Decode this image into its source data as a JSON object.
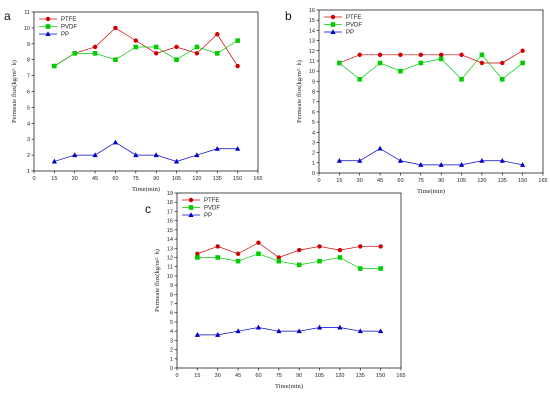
{
  "chart_data": [
    {
      "panel_label": "a",
      "type": "line",
      "xlabel": "Time(min)",
      "ylabel": "Permeate flux(kg/m²· h)",
      "x_ticks": [
        0,
        15,
        30,
        45,
        60,
        75,
        90,
        105,
        120,
        135,
        150,
        165
      ],
      "y_ticks": [
        1,
        2,
        3,
        4,
        5,
        6,
        7,
        8,
        9,
        10,
        11
      ],
      "xlim": [
        0,
        165
      ],
      "ylim": [
        1,
        11
      ],
      "legend_position": "top-left",
      "x": [
        15,
        30,
        45,
        60,
        75,
        90,
        105,
        120,
        135,
        150
      ],
      "series": [
        {
          "name": "PTFE",
          "color": "#cc0000",
          "marker": "circle",
          "values": [
            7.6,
            8.4,
            8.8,
            10.0,
            9.2,
            8.4,
            8.8,
            8.4,
            9.6,
            7.6
          ]
        },
        {
          "name": "PVDF",
          "color": "#00cc00",
          "marker": "square",
          "values": [
            7.6,
            8.4,
            8.4,
            8.0,
            8.8,
            8.8,
            8.0,
            8.8,
            8.4,
            9.2
          ]
        },
        {
          "name": "PP",
          "color": "#0000cc",
          "marker": "triangle",
          "values": [
            1.6,
            2.0,
            2.0,
            2.8,
            2.0,
            2.0,
            1.6,
            2.0,
            2.4,
            2.4
          ]
        }
      ]
    },
    {
      "panel_label": "b",
      "type": "line",
      "xlabel": "Time(min)",
      "ylabel": "Permeate flux(kg/m²· h)",
      "x_ticks": [
        0,
        15,
        30,
        45,
        60,
        75,
        90,
        105,
        120,
        135,
        150,
        165
      ],
      "y_ticks": [
        0,
        1,
        2,
        3,
        4,
        5,
        6,
        7,
        8,
        9,
        10,
        11,
        12,
        13,
        14,
        15,
        16
      ],
      "xlim": [
        0,
        165
      ],
      "ylim": [
        0,
        16
      ],
      "legend_position": "top-left",
      "x": [
        15,
        30,
        45,
        60,
        75,
        90,
        105,
        120,
        135,
        150
      ],
      "series": [
        {
          "name": "PTFE",
          "color": "#cc0000",
          "marker": "circle",
          "values": [
            10.8,
            11.6,
            11.6,
            11.6,
            11.6,
            11.6,
            11.6,
            10.8,
            10.8,
            12.0
          ]
        },
        {
          "name": "PVDF",
          "color": "#00cc00",
          "marker": "square",
          "values": [
            10.8,
            9.2,
            10.8,
            10.0,
            10.8,
            11.2,
            9.2,
            11.6,
            9.2,
            10.8
          ]
        },
        {
          "name": "PP",
          "color": "#0000cc",
          "marker": "triangle",
          "values": [
            1.2,
            1.2,
            2.4,
            1.2,
            0.8,
            0.8,
            0.8,
            1.2,
            1.2,
            0.8
          ]
        }
      ]
    },
    {
      "panel_label": "c",
      "type": "line",
      "xlabel": "Time(min)",
      "ylabel": "Permeate flux(kg/m²· h)",
      "x_ticks": [
        0,
        15,
        30,
        45,
        60,
        75,
        90,
        105,
        120,
        135,
        150,
        165
      ],
      "y_ticks": [
        0,
        1,
        2,
        3,
        4,
        5,
        6,
        7,
        8,
        9,
        10,
        11,
        12,
        13,
        14,
        15,
        16,
        17,
        18,
        19
      ],
      "xlim": [
        0,
        165
      ],
      "ylim": [
        0,
        19
      ],
      "legend_position": "top-left",
      "x": [
        15,
        30,
        45,
        60,
        75,
        90,
        105,
        120,
        135,
        150
      ],
      "series": [
        {
          "name": "PTFE",
          "color": "#cc0000",
          "marker": "circle",
          "values": [
            12.4,
            13.2,
            12.4,
            13.6,
            12.0,
            12.8,
            13.2,
            12.8,
            13.2,
            13.2
          ]
        },
        {
          "name": "PVDF",
          "color": "#00cc00",
          "marker": "square",
          "values": [
            12.0,
            12.0,
            11.6,
            12.4,
            11.6,
            11.2,
            11.6,
            12.0,
            10.8,
            10.8
          ]
        },
        {
          "name": "PP",
          "color": "#0000cc",
          "marker": "triangle",
          "values": [
            3.6,
            3.6,
            4.0,
            4.4,
            4.0,
            4.0,
            4.4,
            4.4,
            4.0,
            4.0
          ]
        }
      ]
    }
  ]
}
